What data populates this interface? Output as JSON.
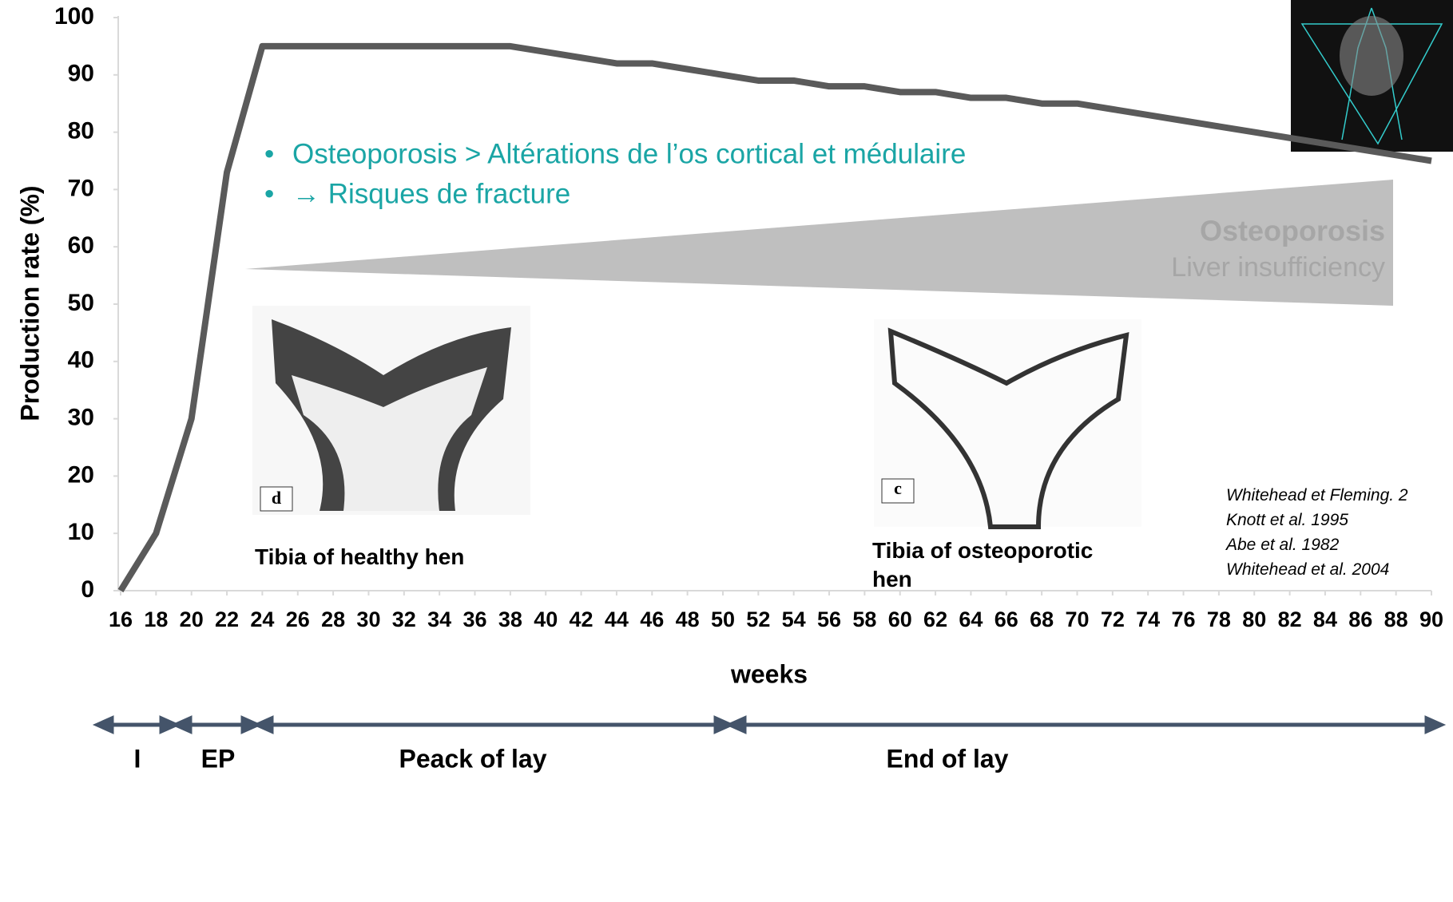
{
  "chart_data": {
    "type": "line",
    "y_label": "Production rate (%)",
    "x_label": "weeks",
    "x": [
      16,
      18,
      20,
      22,
      24,
      26,
      28,
      30,
      32,
      34,
      36,
      38,
      40,
      42,
      44,
      46,
      48,
      50,
      52,
      54,
      56,
      58,
      60,
      62,
      64,
      66,
      68,
      70,
      72,
      74,
      76,
      78,
      80,
      82,
      84,
      86,
      88,
      90
    ],
    "xlim": [
      16,
      90
    ],
    "xticks": [
      16,
      18,
      20,
      22,
      24,
      26,
      28,
      30,
      32,
      34,
      36,
      38,
      40,
      42,
      44,
      46,
      48,
      50,
      52,
      54,
      56,
      58,
      60,
      62,
      64,
      66,
      68,
      70,
      72,
      74,
      76,
      78,
      80,
      82,
      84,
      86,
      88,
      90
    ],
    "series": [
      {
        "color": "#5a5a5a",
        "values": [
          0,
          10,
          30,
          73,
          95,
          95,
          95,
          95,
          95,
          95,
          95,
          95,
          94,
          93,
          92,
          92,
          91,
          90,
          89,
          89,
          88,
          88,
          87,
          87,
          86,
          86,
          85,
          85,
          84,
          83,
          82,
          81,
          80,
          79,
          78,
          77,
          76,
          75
        ]
      }
    ],
    "ylim": [
      0,
      100
    ],
    "yticks": [
      0,
      10,
      20,
      30,
      40,
      50,
      60,
      70,
      80,
      90,
      100
    ],
    "bullets": [
      "Osteoporosis > Altérations de l’os cortical et médulaire",
      "→ Risques de fracture"
    ],
    "wedge_labels": [
      "Osteoporosis",
      "Liver insufficiency"
    ],
    "image_captions": [
      "Tibia of healthy hen",
      "Tibia of osteoporotic hen"
    ],
    "image_letters": [
      "d",
      "c"
    ],
    "references": [
      "Whitehead et Fleming. 2",
      "Knott et al. 1995",
      "Abe et al. 1982",
      "Whitehead et al. 2004"
    ],
    "phases": [
      "I",
      "EP",
      "Peack of lay",
      "End of lay"
    ]
  }
}
